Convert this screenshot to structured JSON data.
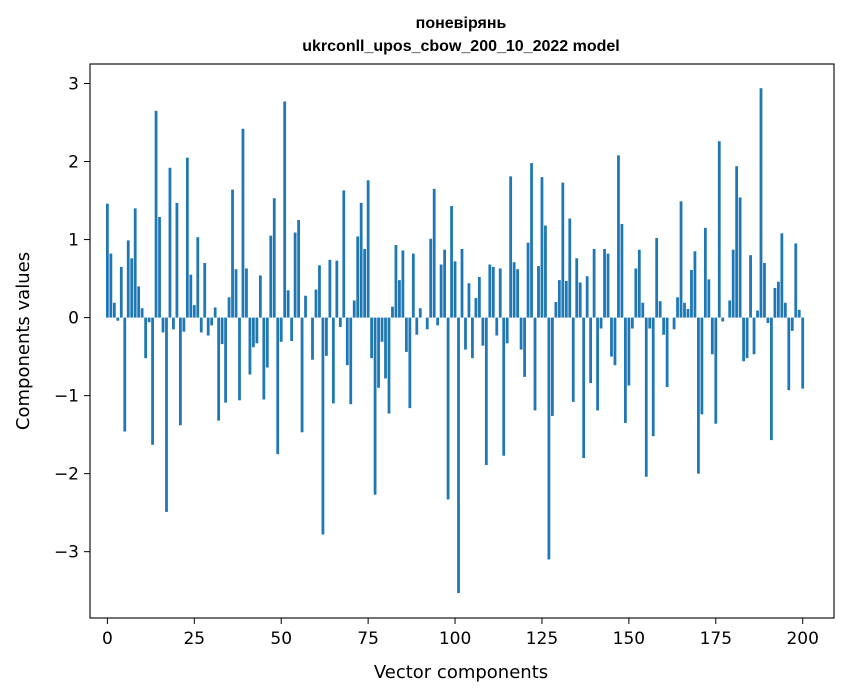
{
  "chart_data": {
    "type": "bar",
    "title": [
      "поневірянь",
      "ukrconll_upos_cbow_200_10_2022 model"
    ],
    "xlabel": "Vector components",
    "ylabel": "Components values",
    "xlim": [
      -5,
      209
    ],
    "ylim": [
      -3.85,
      3.25
    ],
    "xticks": [
      0,
      25,
      50,
      75,
      100,
      125,
      150,
      175,
      200
    ],
    "yticks": [
      -3,
      -2,
      -1,
      0,
      1,
      2,
      3
    ],
    "ytick_labels": [
      "−3",
      "−2",
      "−1",
      "0",
      "1",
      "2",
      "3"
    ],
    "bar_color": "#1f77b4",
    "values": [
      1.46,
      0.82,
      0.19,
      -0.04,
      0.65,
      -1.46,
      0.99,
      0.76,
      1.4,
      0.4,
      0.12,
      -0.52,
      -0.06,
      -1.63,
      2.65,
      1.29,
      -0.19,
      -2.49,
      1.92,
      -0.15,
      1.47,
      -1.38,
      -0.18,
      2.05,
      0.55,
      0.16,
      1.03,
      -0.19,
      0.7,
      -0.23,
      -0.1,
      0.13,
      -1.32,
      -0.34,
      -1.09,
      0.26,
      1.64,
      0.62,
      -1.06,
      2.42,
      0.63,
      -0.73,
      -0.38,
      -0.33,
      0.54,
      -1.05,
      -0.64,
      1.05,
      1.53,
      -1.75,
      -0.31,
      2.77,
      0.35,
      -0.3,
      1.09,
      1.25,
      -1.47,
      0.28,
      0.0,
      -0.54,
      0.36,
      0.67,
      -2.78,
      -0.49,
      0.74,
      -1.1,
      0.73,
      -0.12,
      1.63,
      -0.61,
      -1.11,
      0.22,
      1.04,
      1.47,
      0.88,
      1.76,
      -0.52,
      -2.27,
      -0.9,
      -0.31,
      -0.78,
      -1.23,
      0.14,
      0.93,
      0.48,
      0.86,
      -0.44,
      -1.16,
      0.82,
      -0.22,
      0.12,
      0.0,
      -0.15,
      1.01,
      1.65,
      -0.1,
      0.68,
      0.87,
      -2.33,
      1.43,
      0.72,
      -3.53,
      0.88,
      -0.41,
      0.44,
      -0.52,
      0.25,
      0.52,
      -0.36,
      -1.89,
      0.68,
      0.65,
      -0.23,
      0.63,
      -1.77,
      -0.33,
      1.81,
      0.71,
      0.62,
      -0.41,
      -0.76,
      0.96,
      1.98,
      -1.19,
      0.66,
      1.8,
      1.18,
      -3.1,
      -1.26,
      0.2,
      0.48,
      1.73,
      0.47,
      1.27,
      -1.08,
      0.76,
      0.45,
      -1.8,
      0.53,
      -0.84,
      0.88,
      -1.19,
      -0.14,
      0.88,
      0.82,
      -0.5,
      -0.61,
      2.08,
      1.2,
      -1.35,
      -0.87,
      -0.14,
      0.63,
      0.87,
      0.19,
      -2.04,
      -0.14,
      -1.52,
      1.02,
      0.21,
      -0.22,
      -0.89,
      0.0,
      -0.15,
      0.26,
      1.49,
      0.19,
      0.11,
      0.61,
      0.85,
      -2.0,
      -1.24,
      1.15,
      0.49,
      -0.47,
      -1.36,
      2.26,
      -0.05,
      0.0,
      0.22,
      0.87,
      1.94,
      1.54,
      -0.56,
      -0.52,
      0.8,
      -0.47,
      0.09,
      2.94,
      0.7,
      -0.07,
      -1.57,
      0.38,
      0.46,
      1.08,
      0.19,
      -0.93,
      -0.17,
      0.95,
      0.1,
      -0.91
    ]
  }
}
